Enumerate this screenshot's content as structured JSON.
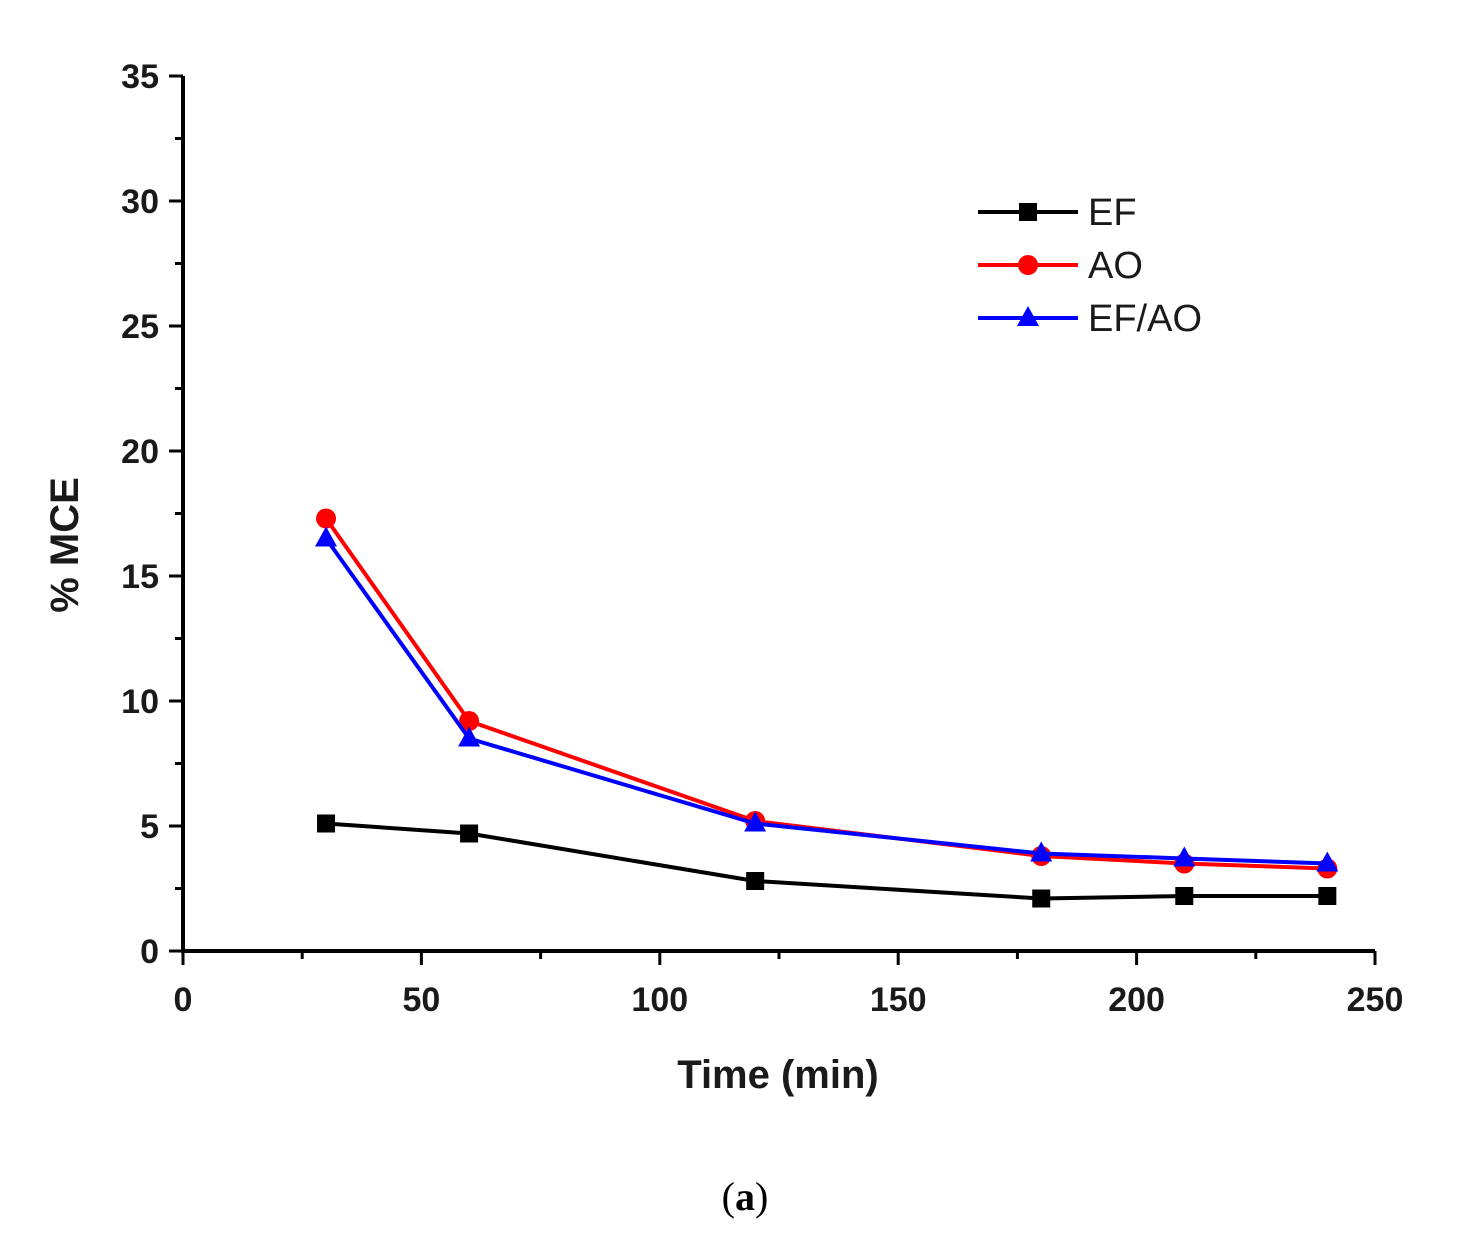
{
  "chart_data": {
    "type": "line",
    "title": "",
    "xlabel": "Time (min)",
    "ylabel": "% MCE",
    "xlim": [
      0,
      250
    ],
    "ylim": [
      0,
      35
    ],
    "xticks": [
      0,
      50,
      100,
      150,
      200,
      250
    ],
    "yticks": [
      0,
      5,
      10,
      15,
      20,
      25,
      30,
      35
    ],
    "x": [
      30,
      60,
      120,
      180,
      210,
      240
    ],
    "grid": false,
    "legend_position": "top-right",
    "series": [
      {
        "name": "EF",
        "color": "#000000",
        "marker": "square",
        "values": [
          5.1,
          4.7,
          2.8,
          2.1,
          2.2,
          2.2
        ]
      },
      {
        "name": "AO",
        "color": "#ff0000",
        "marker": "circle",
        "values": [
          17.3,
          9.2,
          5.2,
          3.8,
          3.5,
          3.3
        ]
      },
      {
        "name": "EF/AO",
        "color": "#0000ff",
        "marker": "triangle",
        "values": [
          16.5,
          8.5,
          5.1,
          3.9,
          3.7,
          3.5
        ]
      }
    ]
  },
  "caption": {
    "open": "(",
    "letter": "a",
    "close": ")"
  }
}
